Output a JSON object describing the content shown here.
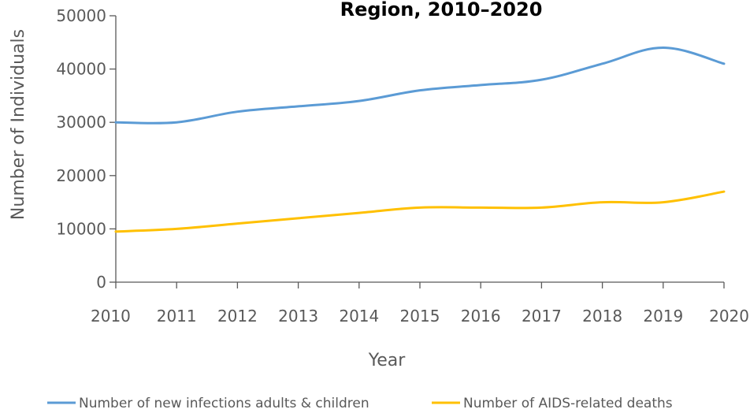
{
  "chart_data": {
    "type": "line",
    "title": "Region, 2010–2020",
    "xlabel": "Year",
    "ylabel": "Number of Individuals",
    "x": [
      2010,
      2011,
      2012,
      2013,
      2014,
      2015,
      2016,
      2017,
      2018,
      2019,
      2020
    ],
    "x_tick_labels": [
      "2010",
      "2011",
      "2012",
      "2013",
      "2014",
      "2015",
      "2016",
      "2017",
      "2018",
      "2019",
      "2020"
    ],
    "y_ticks": [
      0,
      10000,
      20000,
      30000,
      40000,
      50000
    ],
    "y_tick_labels": [
      "0",
      "10000",
      "20000",
      "30000",
      "40000",
      "50000"
    ],
    "ylim": [
      0,
      50000
    ],
    "grid": false,
    "legend_position": "bottom",
    "series": [
      {
        "name": "Number of new infections adults & children",
        "color": "#5B9BD5",
        "values": [
          30000,
          30000,
          32000,
          33000,
          34000,
          36000,
          37000,
          38000,
          41000,
          44000,
          41000
        ]
      },
      {
        "name": "Number of AIDS-related deaths",
        "color": "#FFC000",
        "values": [
          9500,
          10000,
          11000,
          12000,
          13000,
          14000,
          14000,
          14000,
          15000,
          15000,
          17000
        ]
      }
    ]
  }
}
